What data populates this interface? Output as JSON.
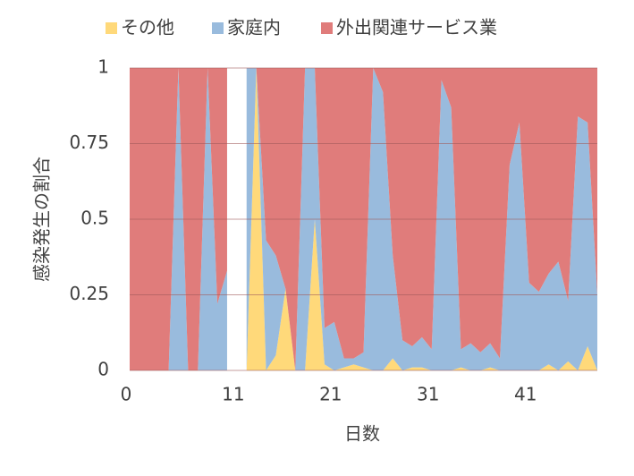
{
  "chart_data": {
    "type": "stacked_area_100",
    "x_label": "日数",
    "y_label": "感染発生の割合",
    "x": [
      0,
      1,
      2,
      3,
      4,
      5,
      6,
      7,
      8,
      9,
      10,
      11,
      12,
      13,
      14,
      15,
      16,
      17,
      18,
      19,
      20,
      21,
      22,
      23,
      24,
      25,
      26,
      27,
      28,
      29,
      30,
      31,
      32,
      33,
      34,
      35,
      36,
      37,
      38,
      39,
      40,
      41,
      42,
      43,
      44,
      45,
      46,
      47,
      48
    ],
    "xlim": [
      0,
      48
    ],
    "xticks": [
      0,
      11,
      21,
      31,
      41
    ],
    "ylim": [
      0,
      1
    ],
    "yticks": [
      0,
      0.25,
      0.5,
      0.75,
      1
    ],
    "grid": true,
    "series": [
      {
        "name": "その他",
        "color": "#ffd97a",
        "values": [
          0,
          0,
          0,
          0,
          0,
          0,
          0,
          0,
          0,
          0,
          0,
          null,
          0,
          1,
          0,
          0.05,
          0.27,
          0,
          0,
          0.5,
          0.02,
          0,
          0.01,
          0.02,
          0.01,
          0,
          0,
          0.04,
          0,
          0.01,
          0.01,
          0,
          0,
          0,
          0.01,
          0,
          0,
          0.01,
          0,
          0,
          0,
          0,
          0,
          0.02,
          0,
          0.03,
          0,
          0.08,
          0
        ]
      },
      {
        "name": "家庭内",
        "color": "#99bbdd",
        "values": [
          0,
          0,
          0,
          0,
          0,
          1,
          0,
          0,
          1,
          0.22,
          0.33,
          null,
          1,
          0,
          0.43,
          0.33,
          0,
          0,
          1,
          0.5,
          0.12,
          0.16,
          0.03,
          0.02,
          0.05,
          1,
          0.92,
          0.34,
          0.1,
          0.07,
          0.1,
          0.07,
          0.96,
          0.87,
          0.06,
          0.09,
          0.06,
          0.08,
          0.04,
          0.68,
          0.82,
          0.29,
          0.26,
          0.3,
          0.36,
          0.2,
          0.84,
          0.74,
          0.25
        ]
      },
      {
        "name": "外出関連サービス業",
        "color": "#e07c7b",
        "values": [
          1,
          1,
          1,
          1,
          1,
          0,
          1,
          1,
          0,
          0.78,
          0.67,
          null,
          0,
          0,
          0.57,
          0.62,
          0.73,
          1,
          0,
          0,
          0.86,
          0.84,
          0.96,
          0.96,
          0.94,
          0,
          0.08,
          0.62,
          0.9,
          0.92,
          0.89,
          0.93,
          0.04,
          0.13,
          0.93,
          0.91,
          0.94,
          0.91,
          0.96,
          0.32,
          0.18,
          0.71,
          0.74,
          0.68,
          0.64,
          0.77,
          0.16,
          0.18,
          0.75
        ]
      }
    ]
  }
}
